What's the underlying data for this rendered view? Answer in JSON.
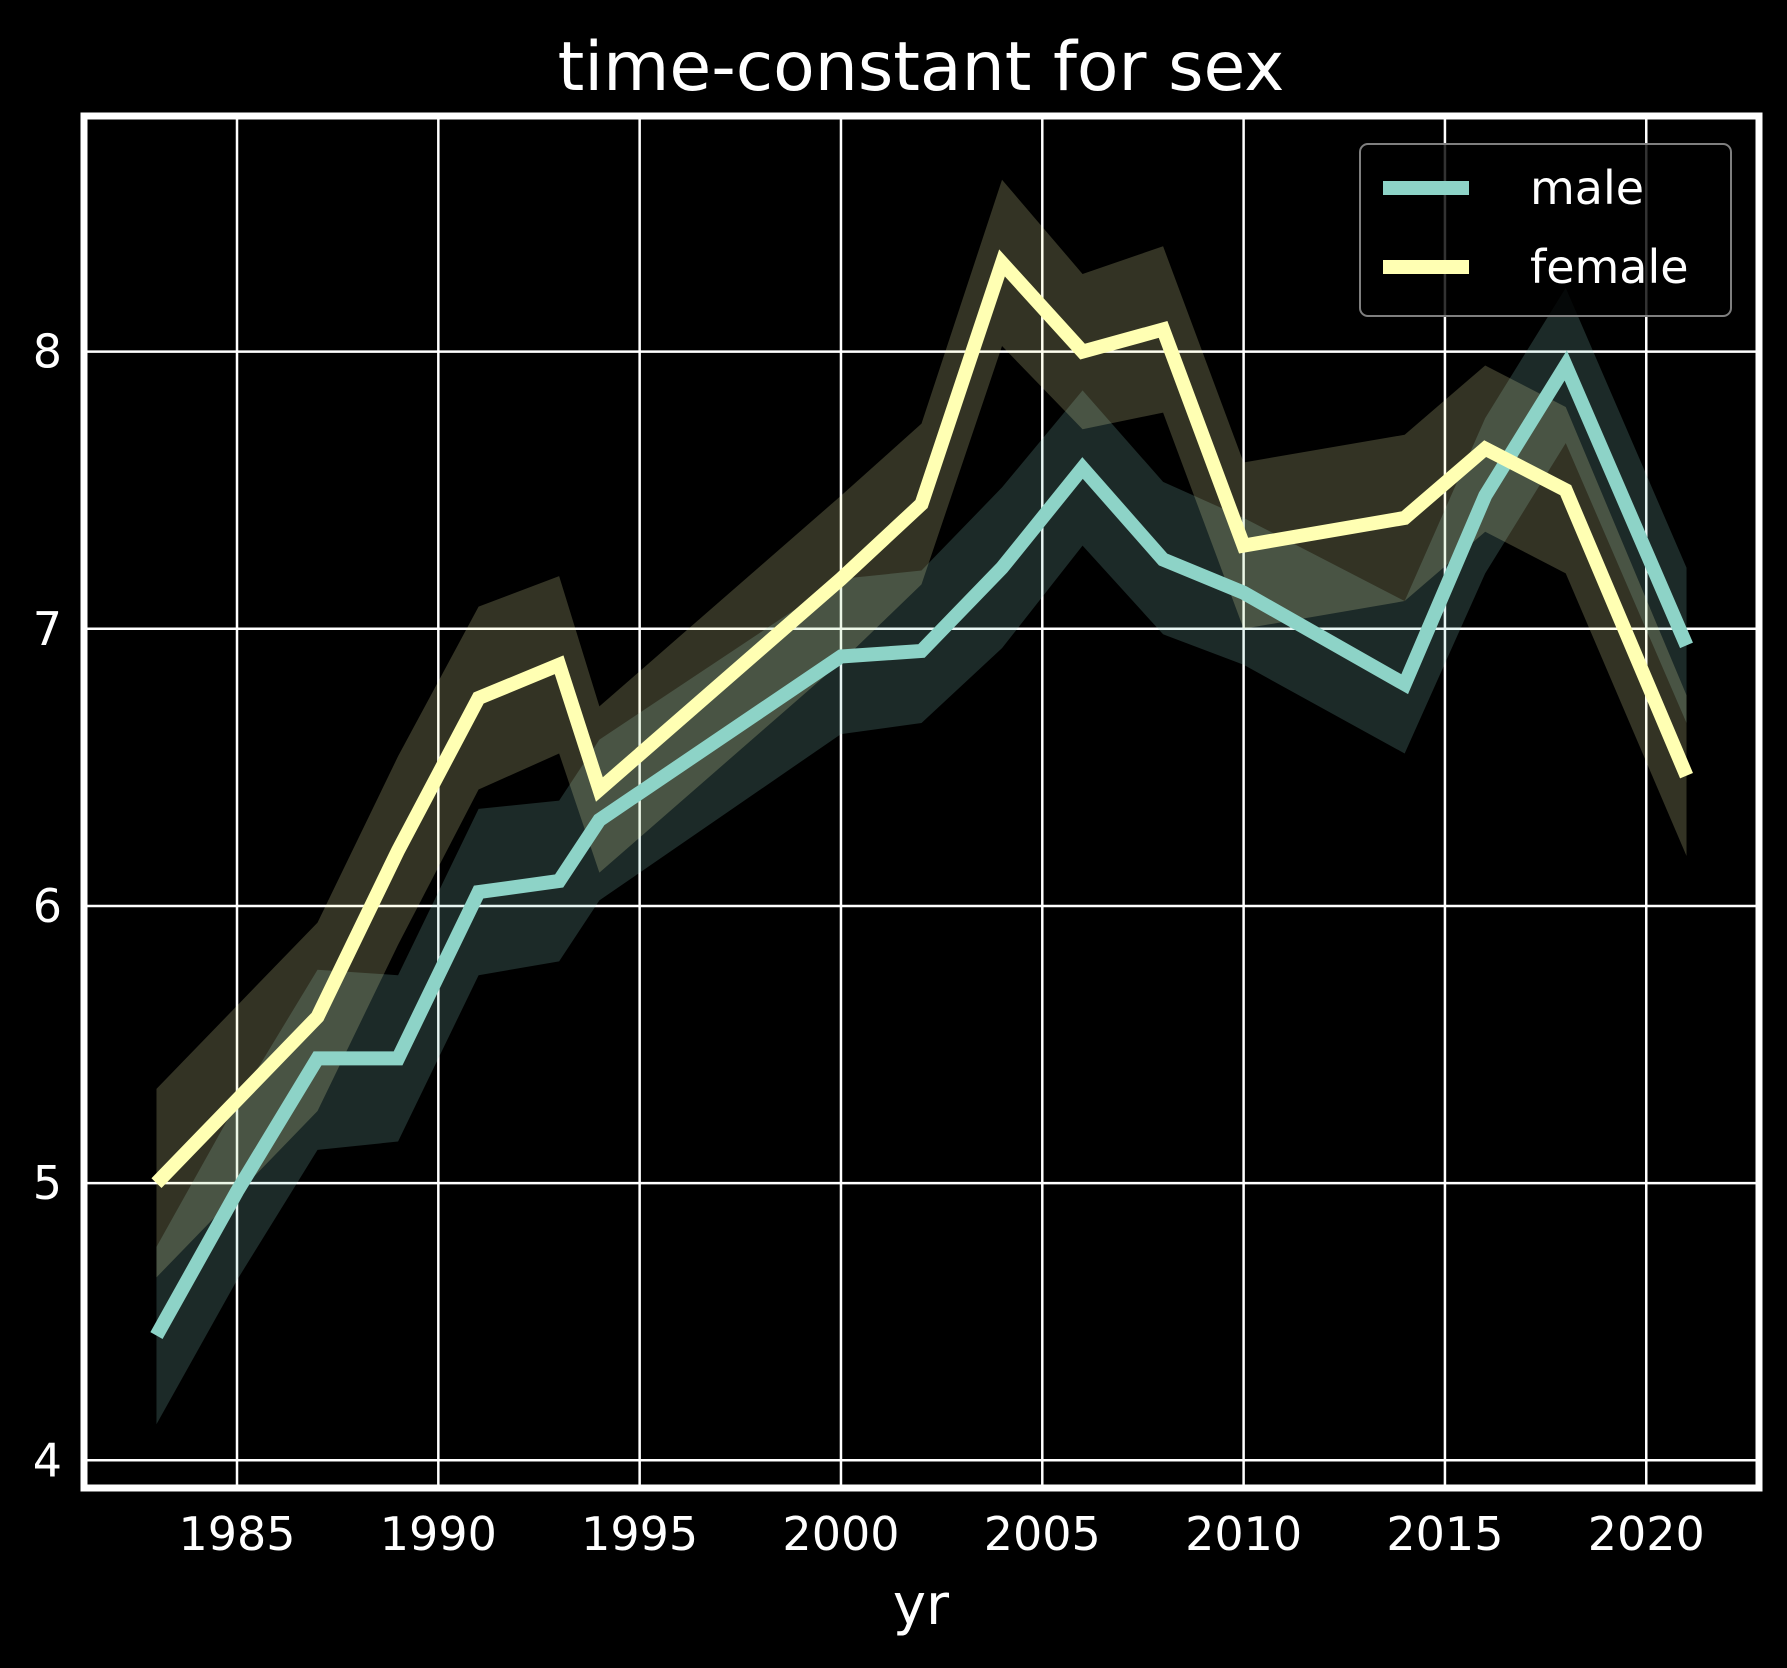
{
  "chart_data": {
    "type": "line",
    "title": "time-constant for sex",
    "xlabel": "yr",
    "ylabel": "",
    "xlim": [
      1981.2,
      2022.8
    ],
    "ylim": [
      3.9,
      8.85
    ],
    "xticks": [
      1985,
      1990,
      1995,
      2000,
      2005,
      2010,
      2015,
      2020
    ],
    "yticks": [
      4,
      5,
      6,
      7,
      8
    ],
    "grid": true,
    "legend_position": "top-right",
    "x": [
      1983,
      1985,
      1987,
      1989,
      1991,
      1993,
      1994,
      2000,
      2002,
      2004,
      2006,
      2008,
      2010,
      2014,
      2016,
      2018,
      2021
    ],
    "series": [
      {
        "name": "male",
        "color": "#8dd3c7",
        "values": [
          4.45,
          4.97,
          5.45,
          5.45,
          6.05,
          6.09,
          6.31,
          6.9,
          6.92,
          7.22,
          7.58,
          7.25,
          7.13,
          6.8,
          7.48,
          7.95,
          6.94
        ],
        "lower": [
          4.13,
          4.65,
          5.12,
          5.15,
          5.75,
          5.8,
          6.02,
          6.62,
          6.66,
          6.93,
          7.3,
          6.98,
          6.87,
          6.55,
          7.2,
          7.67,
          6.66
        ],
        "upper": [
          4.77,
          5.29,
          5.77,
          5.75,
          6.35,
          6.38,
          6.6,
          7.18,
          7.21,
          7.51,
          7.86,
          7.53,
          7.4,
          7.1,
          7.76,
          8.23,
          7.22
        ]
      },
      {
        "name": "female",
        "color": "#ffffb3",
        "values": [
          5.0,
          5.3,
          5.6,
          6.2,
          6.75,
          6.87,
          6.42,
          7.18,
          7.45,
          8.32,
          8.0,
          8.08,
          7.3,
          7.4,
          7.65,
          7.5,
          6.47
        ],
        "lower": [
          4.66,
          4.96,
          5.26,
          5.86,
          6.42,
          6.55,
          6.12,
          6.88,
          7.16,
          8.02,
          7.72,
          7.78,
          7.0,
          7.1,
          7.35,
          7.2,
          6.18
        ],
        "upper": [
          5.34,
          5.64,
          5.94,
          6.54,
          7.08,
          7.19,
          6.72,
          7.48,
          7.74,
          8.62,
          8.28,
          8.38,
          7.6,
          7.7,
          7.95,
          7.8,
          6.76
        ]
      }
    ]
  }
}
